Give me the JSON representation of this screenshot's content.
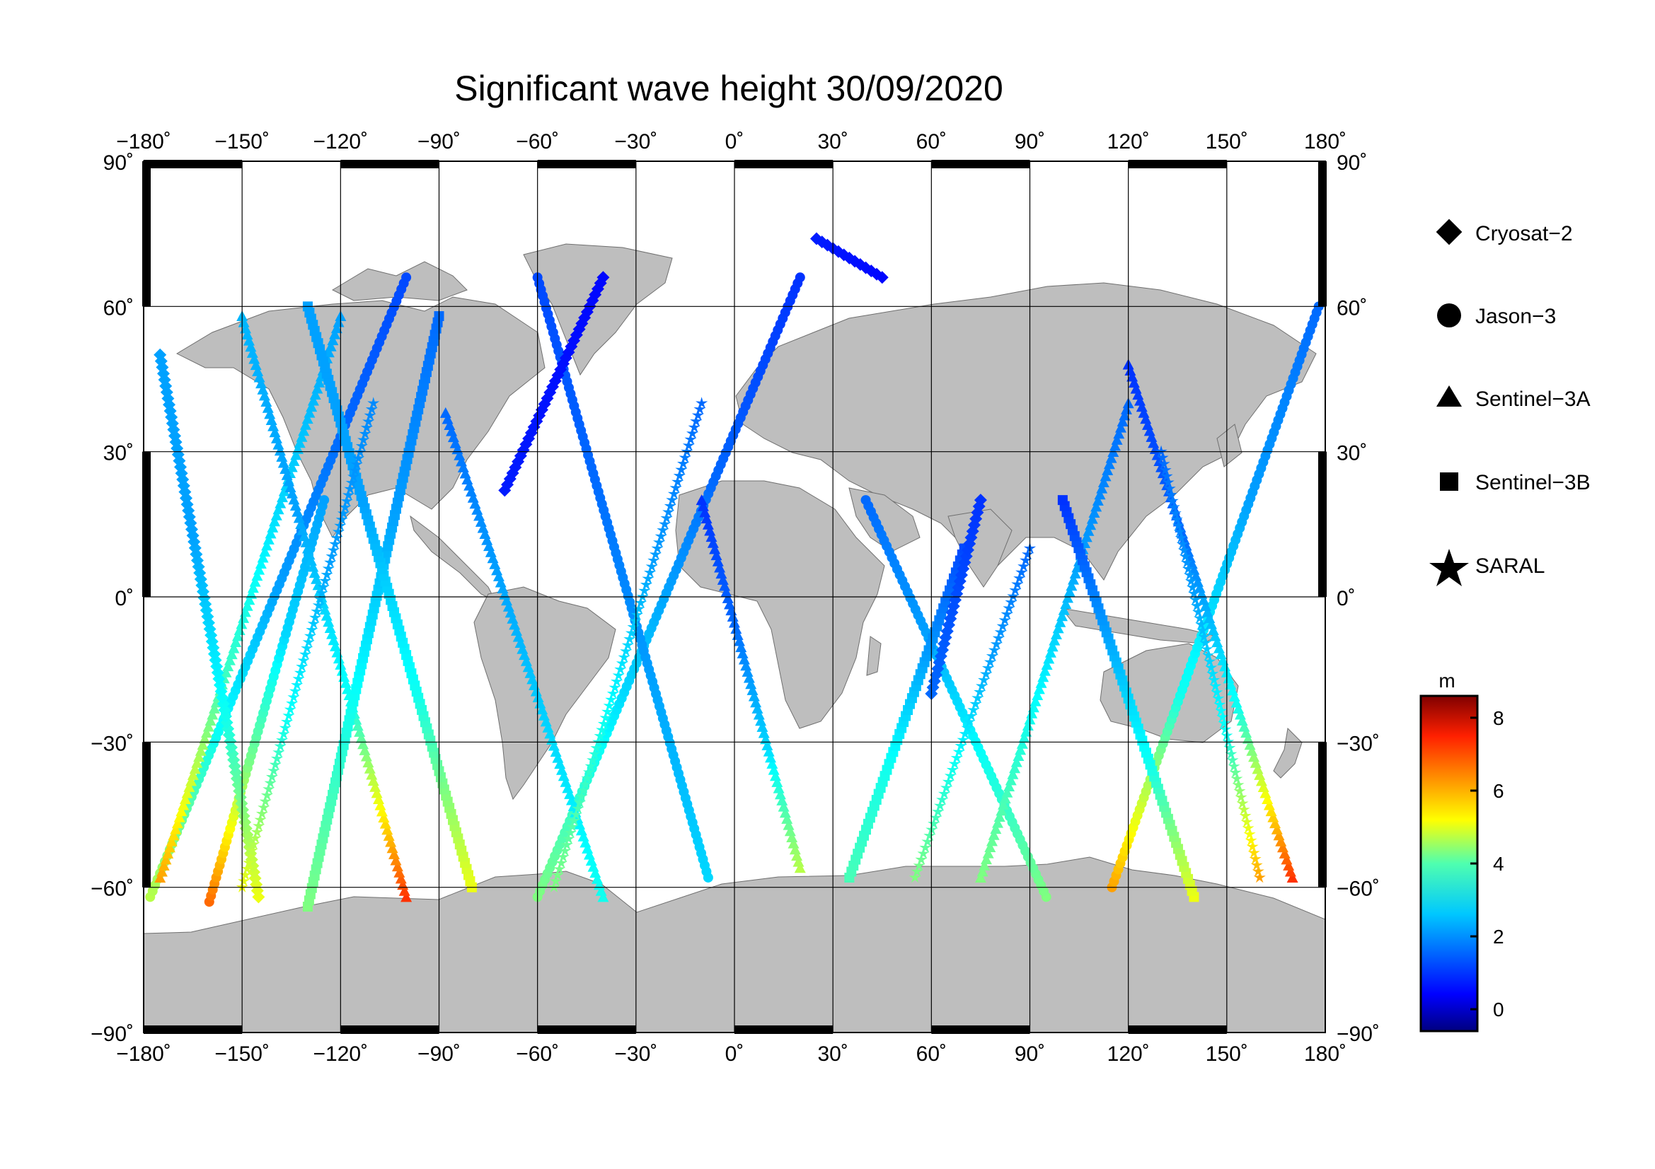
{
  "title": "Significant wave height 30/09/2020",
  "axes": {
    "lon_ticks": [
      -180,
      -150,
      -120,
      -90,
      -60,
      -30,
      0,
      30,
      60,
      90,
      120,
      150,
      180
    ],
    "lat_ticks": [
      90,
      60,
      30,
      0,
      -30,
      -60,
      -90
    ],
    "lon_labels": [
      "−180˚",
      "−150˚",
      "−120˚",
      "−90˚",
      "−60˚",
      "−30˚",
      "0˚",
      "30˚",
      "60˚",
      "90˚",
      "120˚",
      "150˚",
      "180˚"
    ],
    "lat_labels": [
      "90˚",
      "60˚",
      "30˚",
      "0˚",
      "−30˚",
      "−60˚",
      "−90˚"
    ],
    "lon_range": [
      -180,
      180
    ],
    "lat_range": [
      -90,
      90
    ],
    "grid": true
  },
  "legend": {
    "items": [
      {
        "label": "Cryosat−2",
        "marker": "diamond"
      },
      {
        "label": "Jason−3",
        "marker": "circle"
      },
      {
        "label": "Sentinel−3A",
        "marker": "triangle"
      },
      {
        "label": "Sentinel−3B",
        "marker": "square"
      },
      {
        "label": "SARAL",
        "marker": "star"
      }
    ]
  },
  "colorbar": {
    "unit": "m",
    "min": -0.6,
    "max": 8.6,
    "ticks": [
      8,
      6,
      4,
      2,
      0
    ],
    "colormap": "jet"
  },
  "colors": {
    "land": "#bebebe",
    "ocean": "#ffffff",
    "grid": "#000000"
  },
  "chart_data": {
    "type": "scatter",
    "projection": "equirectangular",
    "xlabel": "",
    "ylabel": "",
    "xlim": [
      -180,
      180
    ],
    "ylim": [
      -90,
      90
    ],
    "value_unit": "m",
    "tracks": [
      {
        "satellite": "Jason−3",
        "start": [
          -178,
          -62
        ],
        "end": [
          -100,
          66
        ],
        "hs": [
          4.5,
          3,
          2,
          1.5,
          1.2
        ]
      },
      {
        "satellite": "Jason−3",
        "start": [
          -160,
          -63
        ],
        "end": [
          -125,
          20
        ],
        "hs": [
          6.5,
          4,
          2.5,
          2
        ]
      },
      {
        "satellite": "Jason−3",
        "start": [
          -60,
          -62
        ],
        "end": [
          20,
          66
        ],
        "hs": [
          4,
          2.5,
          1.5,
          1
        ]
      },
      {
        "satellite": "Jason−3",
        "start": [
          -8,
          -58
        ],
        "end": [
          -60,
          66
        ],
        "hs": [
          2.5,
          2,
          1.5,
          1.2
        ]
      },
      {
        "satellite": "Jason−3",
        "start": [
          115,
          -60
        ],
        "end": [
          178,
          60
        ],
        "hs": [
          6,
          3,
          2,
          1.5
        ]
      },
      {
        "satellite": "Jason−3",
        "start": [
          95,
          -62
        ],
        "end": [
          40,
          20
        ],
        "hs": [
          4,
          3,
          2,
          1.5
        ]
      },
      {
        "satellite": "Sentinel−3A",
        "start": [
          -175,
          -58
        ],
        "end": [
          -120,
          58
        ],
        "hs": [
          6,
          3.5,
          2.5,
          2
        ]
      },
      {
        "satellite": "Sentinel−3A",
        "start": [
          -100,
          -62
        ],
        "end": [
          -150,
          58
        ],
        "hs": [
          7,
          3,
          2,
          2.2
        ]
      },
      {
        "satellite": "Sentinel−3A",
        "start": [
          -40,
          -62
        ],
        "end": [
          -88,
          38
        ],
        "hs": [
          3,
          2.5,
          2,
          1.5
        ]
      },
      {
        "satellite": "Sentinel−3A",
        "start": [
          20,
          -56
        ],
        "end": [
          -10,
          20
        ],
        "hs": [
          4.5,
          2.5,
          1.5,
          1
        ]
      },
      {
        "satellite": "Sentinel−3A",
        "start": [
          75,
          -58
        ],
        "end": [
          120,
          40
        ],
        "hs": [
          4,
          3,
          2,
          1.5
        ]
      },
      {
        "satellite": "Sentinel−3A",
        "start": [
          170,
          -58
        ],
        "end": [
          120,
          48
        ],
        "hs": [
          7,
          3,
          1.5,
          1
        ]
      },
      {
        "satellite": "Sentinel−3B",
        "start": [
          -130,
          -64
        ],
        "end": [
          -90,
          58
        ],
        "hs": [
          4,
          3,
          2,
          1.5
        ]
      },
      {
        "satellite": "Sentinel−3B",
        "start": [
          -80,
          -60
        ],
        "end": [
          -130,
          60
        ],
        "hs": [
          5,
          3,
          2,
          2
        ]
      },
      {
        "satellite": "Sentinel−3B",
        "start": [
          35,
          -58
        ],
        "end": [
          70,
          10
        ],
        "hs": [
          3.5,
          3,
          2,
          1.2
        ]
      },
      {
        "satellite": "Sentinel−3B",
        "start": [
          140,
          -62
        ],
        "end": [
          100,
          20
        ],
        "hs": [
          5,
          3,
          2,
          1
        ]
      },
      {
        "satellite": "Cryosat−2",
        "start": [
          -145,
          -62
        ],
        "end": [
          -175,
          50
        ],
        "hs": [
          5,
          3,
          2,
          2
        ]
      },
      {
        "satellite": "Cryosat−2",
        "start": [
          25,
          74
        ],
        "end": [
          45,
          66
        ],
        "hs": [
          0.8,
          0.6
        ]
      },
      {
        "satellite": "Cryosat−2",
        "start": [
          -70,
          22
        ],
        "end": [
          -40,
          66
        ],
        "hs": [
          0.8,
          0.6
        ]
      },
      {
        "satellite": "Cryosat−2",
        "start": [
          60,
          -20
        ],
        "end": [
          75,
          20
        ],
        "hs": [
          1.5,
          1
        ]
      },
      {
        "satellite": "SARAL",
        "start": [
          -150,
          -60
        ],
        "end": [
          -110,
          40
        ],
        "hs": [
          5,
          3,
          2,
          1.8
        ]
      },
      {
        "satellite": "SARAL",
        "start": [
          -55,
          -60
        ],
        "end": [
          -10,
          40
        ],
        "hs": [
          4,
          3,
          2,
          1.5
        ]
      },
      {
        "satellite": "SARAL",
        "start": [
          55,
          -58
        ],
        "end": [
          90,
          10
        ],
        "hs": [
          4,
          3,
          2,
          1.5
        ]
      },
      {
        "satellite": "SARAL",
        "start": [
          160,
          -58
        ],
        "end": [
          130,
          30
        ],
        "hs": [
          6,
          3,
          2,
          1.5
        ]
      }
    ]
  }
}
